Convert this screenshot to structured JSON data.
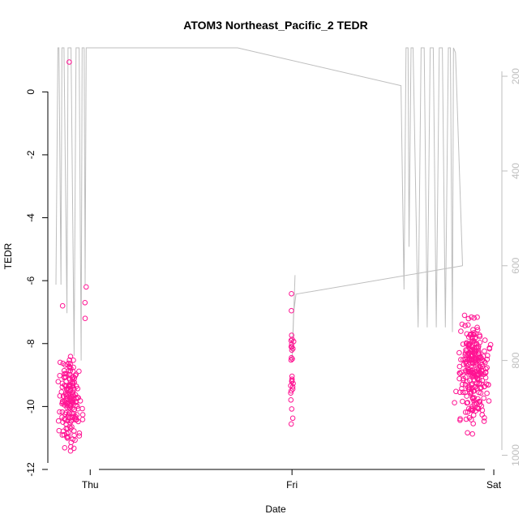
{
  "chart_data": {
    "type": "scatter",
    "title": "ATOM3 Northeast_Pacific_2 TEDR",
    "xlabel": "Date",
    "ylabel": "TEDR",
    "x_ticks": [
      {
        "label": "Thu",
        "day": 0
      },
      {
        "label": "Fri",
        "day": 1
      },
      {
        "label": "Sat",
        "day": 2
      }
    ],
    "xlim_days": [
      -0.21,
      2.04
    ],
    "ylim": [
      -12,
      1.4
    ],
    "y_ticks": [
      0,
      -2,
      -4,
      -6,
      -8,
      -10,
      -12
    ],
    "y2_ticks": [
      200,
      400,
      600,
      800,
      1000
    ],
    "y2lim": [
      1030,
      140
    ],
    "grid": false,
    "legend": "none",
    "colors": {
      "points": "#ff1493",
      "pressure_line": "#bebebe",
      "axis": "#000000",
      "right_axis": "#bebebe"
    },
    "series": [
      {
        "type": "points",
        "clusters": [
          {
            "center_day": -0.1,
            "spread_day": 0.07,
            "ymin": -11.5,
            "ymax": -8.2,
            "count": 170,
            "seed": 3
          },
          {
            "center_day": 1.0,
            "spread_day": 0.012,
            "ymin": -10.8,
            "ymax": -6.0,
            "count": 28,
            "seed": 7
          },
          {
            "center_day": 1.9,
            "spread_day": 0.1,
            "ymin": -10.9,
            "ymax": -6.8,
            "count": 270,
            "seed": 11
          }
        ],
        "extra_points": [
          {
            "day": -0.104,
            "y": 0.95
          },
          {
            "day": -0.137,
            "y": -6.8
          },
          {
            "day": -0.02,
            "y": -6.2
          },
          {
            "day": -0.025,
            "y": -7.2
          },
          {
            "day": -0.026,
            "y": -6.7
          }
        ]
      },
      {
        "type": "line",
        "axis": "right",
        "points": [
          [
            -0.17,
            640
          ],
          [
            -0.16,
            140
          ],
          [
            -0.155,
            140
          ],
          [
            -0.145,
            640
          ],
          [
            -0.14,
            140
          ],
          [
            -0.13,
            140
          ],
          [
            -0.115,
            700
          ],
          [
            -0.11,
            140
          ],
          [
            -0.095,
            140
          ],
          [
            -0.08,
            790
          ],
          [
            -0.07,
            140
          ],
          [
            -0.055,
            140
          ],
          [
            -0.045,
            800
          ],
          [
            -0.04,
            140
          ],
          [
            -0.03,
            140
          ],
          [
            -0.025,
            640
          ],
          [
            -0.02,
            140
          ],
          [
            0.73,
            140
          ],
          [
            1.54,
            220
          ],
          [
            1.555,
            650
          ],
          [
            1.565,
            140
          ],
          [
            1.575,
            140
          ],
          [
            1.58,
            560
          ],
          [
            1.59,
            140
          ],
          [
            1.6,
            140
          ],
          [
            1.625,
            730
          ],
          [
            1.64,
            140
          ],
          [
            1.655,
            140
          ],
          [
            1.67,
            730
          ],
          [
            1.685,
            140
          ],
          [
            1.7,
            140
          ],
          [
            1.715,
            730
          ],
          [
            1.73,
            140
          ],
          [
            1.745,
            140
          ],
          [
            1.76,
            730
          ],
          [
            1.775,
            140
          ],
          [
            1.785,
            140
          ],
          [
            1.795,
            740
          ],
          [
            1.8,
            140
          ],
          [
            1.81,
            150
          ],
          [
            1.845,
            600
          ]
        ]
      },
      {
        "type": "line",
        "axis": "right",
        "points": [
          [
            1.015,
            620
          ],
          [
            1.005,
            745
          ],
          [
            1.0,
            800
          ],
          [
            1.008,
            700
          ],
          [
            1.02,
            660
          ],
          [
            1.845,
            600
          ]
        ]
      }
    ]
  }
}
